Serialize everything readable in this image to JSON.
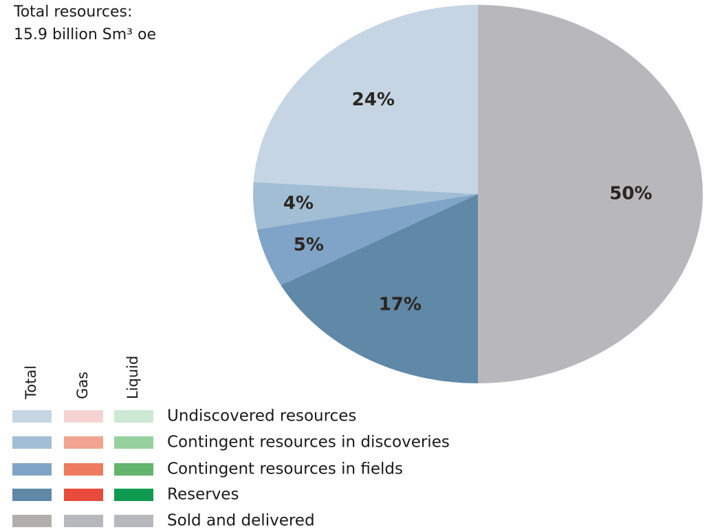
{
  "chart_data": {
    "type": "pie",
    "title": "Total resources:",
    "subtitle": "15.9 billion Sm³ oe",
    "categories": [
      "Undiscovered resources",
      "Contingent resources in discoveries",
      "Contingent resources in fields",
      "Reserves",
      "Sold and delivered"
    ],
    "values": [
      24,
      4,
      5,
      17,
      50
    ],
    "value_labels": [
      "24%",
      "4%",
      "5%",
      "17%",
      "50%"
    ],
    "colors": [
      "#c5d5e3",
      "#a1bed4",
      "#80a4c7",
      "#6088a7",
      "#b8b8bc"
    ],
    "legend_columns": [
      {
        "name": "Total",
        "colors": [
          "#c5d5e3",
          "#a1bed4",
          "#80a4c7",
          "#6088a7",
          "#b1afac"
        ]
      },
      {
        "name": "Gas",
        "colors": [
          "#f6d3d3",
          "#f2a490",
          "#ee7a5f",
          "#e84b3b",
          "#b8b9bd"
        ]
      },
      {
        "name": "Liquid",
        "colors": [
          "#cde8d3",
          "#96d09e",
          "#61b56c",
          "#0e9b4f",
          "#b8b9bd"
        ]
      }
    ]
  }
}
